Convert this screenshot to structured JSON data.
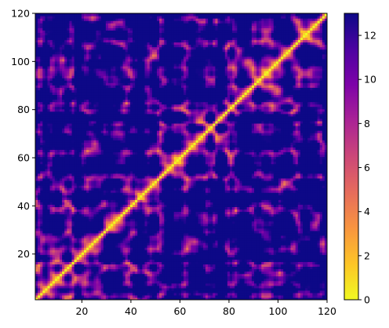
{
  "chart_data": {
    "type": "heatmap",
    "title": "",
    "xlabel": "",
    "ylabel": "",
    "xlim": [
      1,
      120
    ],
    "ylim": [
      1,
      120
    ],
    "x_ticks": [
      20,
      40,
      60,
      80,
      100,
      120
    ],
    "y_ticks": [
      20,
      40,
      60,
      80,
      100,
      120
    ],
    "colorbar": {
      "colormap": "plasma_r",
      "range": [
        0,
        13
      ],
      "ticks": [
        0,
        2,
        4,
        6,
        8,
        10,
        12
      ],
      "colors": [
        "#f0f921",
        "#fdc527",
        "#f89540",
        "#e66c5c",
        "#cc4778",
        "#aa2395",
        "#7e03a8",
        "#4c02a1",
        "#0d0887"
      ]
    },
    "matrix_description": "symmetric distance matrix, zero on the diagonal",
    "value_range": [
      0,
      13
    ],
    "grid": false,
    "legend": "none"
  }
}
